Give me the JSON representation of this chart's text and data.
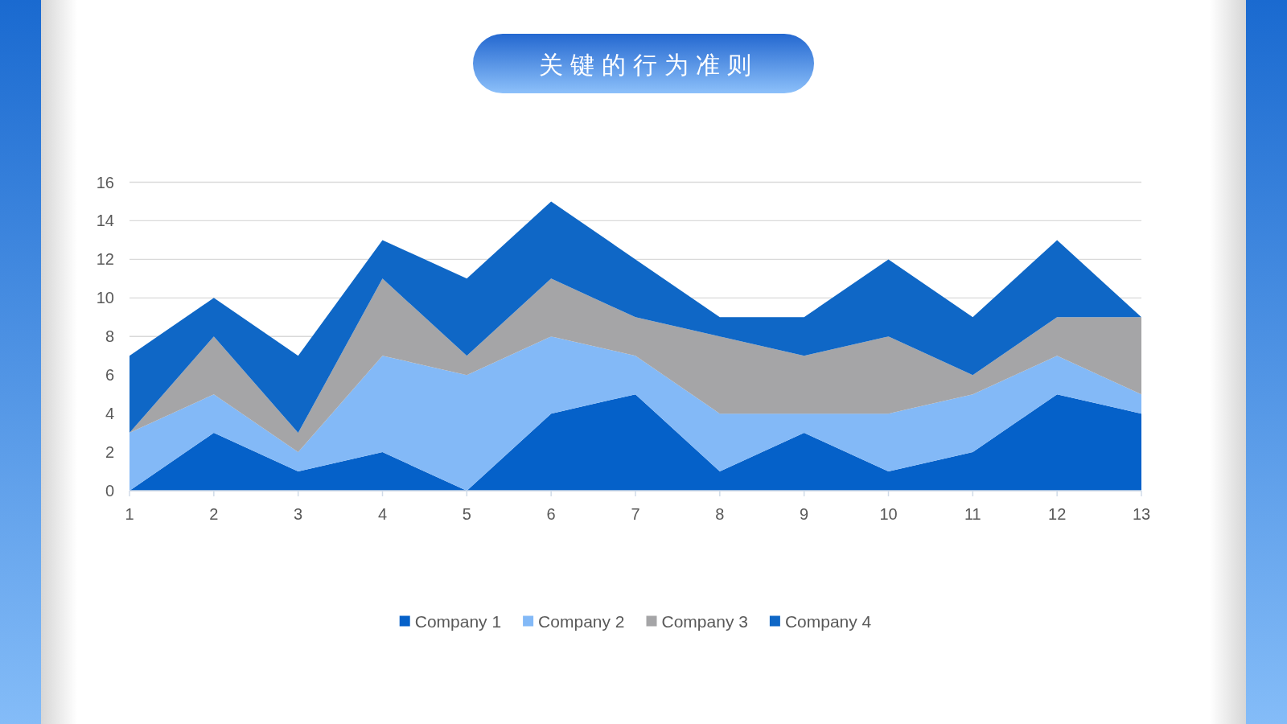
{
  "chart_data": {
    "type": "area",
    "title": "关键的行为准则",
    "x": [
      1,
      2,
      3,
      4,
      5,
      6,
      7,
      8,
      9,
      10,
      11,
      12,
      13
    ],
    "stacked": true,
    "series": [
      {
        "name": "Company 1",
        "color": "#0561c9",
        "values": [
          0,
          3,
          1,
          2,
          0,
          4,
          5,
          1,
          3,
          1,
          2,
          5,
          4
        ]
      },
      {
        "name": "Company 2",
        "color": "#83b9f7",
        "values": [
          3,
          2,
          1,
          5,
          6,
          4,
          2,
          3,
          1,
          3,
          3,
          2,
          1
        ]
      },
      {
        "name": "Company 3",
        "color": "#a5a5a7",
        "values": [
          0,
          3,
          1,
          4,
          1,
          3,
          2,
          4,
          3,
          4,
          1,
          2,
          4
        ]
      },
      {
        "name": "Company 4",
        "color": "#0f67c6",
        "values": [
          4,
          2,
          4,
          2,
          4,
          4,
          3,
          1,
          2,
          4,
          3,
          4,
          0
        ]
      }
    ],
    "xlim": [
      1,
      13
    ],
    "xticks": [
      1,
      2,
      3,
      4,
      5,
      6,
      7,
      8,
      9,
      10,
      11,
      12,
      13
    ],
    "ylim": [
      0,
      16
    ],
    "yticks": [
      0,
      2,
      4,
      6,
      8,
      10,
      12,
      14,
      16
    ],
    "grid": "y",
    "legend": "bottom"
  }
}
